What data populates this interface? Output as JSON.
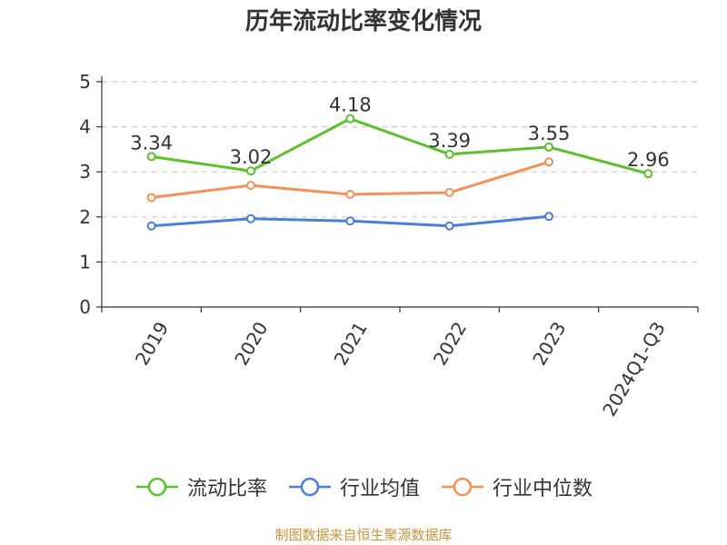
{
  "chart_data": {
    "type": "line",
    "title": "历年流动比率变化情况",
    "categories": [
      "2019",
      "2020",
      "2021",
      "2022",
      "2023",
      "2024Q1-Q3"
    ],
    "ylim": [
      0,
      5
    ],
    "yticks": [
      0,
      1,
      2,
      3,
      4,
      5
    ],
    "grid": true,
    "legend_position": "bottom",
    "series": [
      {
        "name": "流动比率",
        "color": "#5bc02b",
        "values": [
          3.34,
          3.02,
          4.18,
          3.39,
          3.55,
          2.96
        ],
        "labels": [
          "3.34",
          "3.02",
          "4.18",
          "3.39",
          "3.55",
          "2.96"
        ]
      },
      {
        "name": "行业均值",
        "color": "#4a7fd9",
        "values": [
          1.8,
          1.96,
          1.91,
          1.8,
          2.01,
          null
        ]
      },
      {
        "name": "行业中位数",
        "color": "#f59059",
        "values": [
          2.43,
          2.7,
          2.5,
          2.54,
          3.22,
          null
        ]
      }
    ]
  },
  "source": "制图数据来自恒生聚源数据库"
}
